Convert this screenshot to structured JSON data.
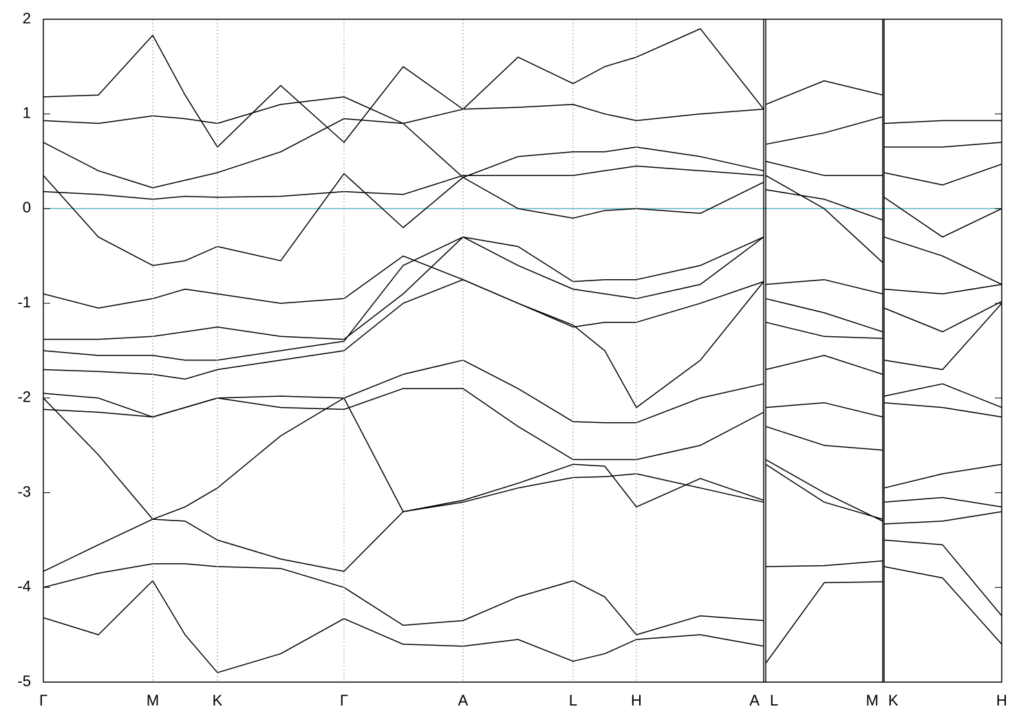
{
  "chart_data": {
    "type": "line",
    "color": "#000000",
    "x": [
      0,
      0.8,
      1.59,
      2.06,
      2.53,
      3.45,
      4.37,
      5.23,
      6.1,
      6.9,
      7.7,
      8.16,
      8.62,
      9.55,
      10.47,
      null,
      10.5,
      11.35,
      12.2,
      null,
      12.22,
      13.07,
      13.93
    ],
    "series": [
      {
        "color": "#000000",
        "values": [
          -4.32,
          -4.5,
          -3.93,
          -4.5,
          -4.9,
          -4.7,
          -4.33,
          -4.6,
          -4.62,
          -4.55,
          -4.78,
          -4.7,
          -4.55,
          -4.5,
          -4.62,
          null,
          -4.8,
          -3.95,
          -3.94,
          null,
          -3.78,
          -3.9,
          -4.6
        ]
      },
      {
        "color": "#000000",
        "values": [
          -4.0,
          -3.85,
          -3.75,
          -3.75,
          -3.78,
          -3.8,
          -4.0,
          -4.4,
          -4.35,
          -4.1,
          -3.93,
          -4.1,
          -4.5,
          -4.3,
          -4.35,
          null,
          -3.78,
          -3.77,
          -3.72,
          null,
          -3.5,
          -3.55,
          -4.3
        ]
      },
      {
        "color": "#000000",
        "values": [
          -3.83,
          -3.55,
          -3.28,
          -3.3,
          -3.5,
          -3.7,
          -3.83,
          -3.2,
          -3.1,
          -2.95,
          -2.84,
          -2.83,
          -2.8,
          -2.95,
          -3.1,
          null,
          -2.7,
          -3.1,
          -3.28,
          null,
          -3.33,
          -3.3,
          -3.2
        ]
      },
      {
        "color": "#000000",
        "values": [
          -2.0,
          -2.6,
          -3.28,
          -3.15,
          -2.95,
          -2.4,
          -2.0,
          -3.2,
          -3.08,
          -2.9,
          -2.7,
          -2.72,
          -3.15,
          -2.85,
          -3.08,
          null,
          -2.65,
          -3.0,
          -3.3,
          null,
          -3.1,
          -3.05,
          -3.15
        ]
      },
      {
        "color": "#000000",
        "values": [
          -2.12,
          -2.15,
          -2.2,
          -2.1,
          -2.0,
          -2.1,
          -2.12,
          -1.9,
          -1.9,
          -2.3,
          -2.65,
          -2.65,
          -2.65,
          -2.5,
          -2.15,
          null,
          -2.3,
          -2.5,
          -2.55,
          null,
          -2.95,
          -2.8,
          -2.7
        ]
      },
      {
        "color": "#000000",
        "values": [
          -1.95,
          -2.0,
          -2.2,
          -2.1,
          -2.0,
          -1.98,
          -2.0,
          -1.75,
          -1.6,
          -1.9,
          -2.25,
          -2.26,
          -2.26,
          -2.0,
          -1.85,
          null,
          -2.1,
          -2.05,
          -2.2,
          null,
          -2.05,
          -2.1,
          -2.2
        ]
      },
      {
        "color": "#000000",
        "values": [
          -1.7,
          -1.72,
          -1.75,
          -1.8,
          -1.7,
          -1.6,
          -1.5,
          -1.0,
          -0.75,
          -1.0,
          -1.23,
          -1.5,
          -2.1,
          -1.6,
          -0.77,
          null,
          -1.7,
          -1.55,
          -1.75,
          null,
          -1.98,
          -1.85,
          -2.1
        ]
      },
      {
        "color": "#000000",
        "values": [
          -1.5,
          -1.55,
          -1.55,
          -1.6,
          -1.6,
          -1.5,
          -1.4,
          -0.6,
          -0.3,
          -0.6,
          -0.85,
          -0.9,
          -0.95,
          -0.8,
          -0.3,
          null,
          -1.2,
          -1.35,
          -1.37,
          null,
          -1.6,
          -1.7,
          -1.0
        ]
      },
      {
        "color": "#000000",
        "values": [
          -1.38,
          -1.38,
          -1.35,
          -1.3,
          -1.25,
          -1.35,
          -1.38,
          -0.9,
          -0.3,
          -0.4,
          -0.77,
          -0.75,
          -0.75,
          -0.6,
          -0.3,
          null,
          -0.95,
          -1.1,
          -1.3,
          null,
          -1.05,
          -1.3,
          -0.98
        ]
      },
      {
        "color": "#000000",
        "values": [
          -0.9,
          -1.05,
          -0.95,
          -0.85,
          -0.9,
          -1.0,
          -0.95,
          -0.5,
          -0.75,
          -1.0,
          -1.25,
          -1.2,
          -1.2,
          -1.0,
          -0.77,
          null,
          -0.8,
          -0.75,
          -0.9,
          null,
          -0.85,
          -0.9,
          -0.8
        ]
      },
      {
        "color": "#000000",
        "values": [
          0.35,
          -0.3,
          -0.6,
          -0.55,
          -0.4,
          -0.55,
          0.37,
          -0.2,
          0.33,
          0.0,
          -0.1,
          -0.02,
          0.0,
          -0.05,
          0.28,
          null,
          0.35,
          0.0,
          -0.57,
          null,
          -0.3,
          -0.5,
          -0.8
        ]
      },
      {
        "color": "#000000",
        "values": [
          0.18,
          0.15,
          0.1,
          0.13,
          0.12,
          0.13,
          0.18,
          0.15,
          0.35,
          0.35,
          0.35,
          0.4,
          0.45,
          0.4,
          0.35,
          null,
          0.2,
          0.1,
          -0.12,
          null,
          0.12,
          -0.3,
          0.0
        ]
      },
      {
        "color": "#000000",
        "values": [
          0.7,
          0.4,
          0.22,
          0.3,
          0.38,
          0.6,
          0.95,
          0.9,
          0.33,
          0.55,
          0.6,
          0.6,
          0.65,
          0.55,
          0.4,
          null,
          0.5,
          0.35,
          0.35,
          null,
          0.38,
          0.25,
          0.47
        ]
      },
      {
        "color": "#000000",
        "values": [
          0.93,
          0.9,
          0.98,
          0.95,
          0.9,
          1.1,
          1.18,
          0.9,
          1.05,
          1.07,
          1.1,
          1.0,
          0.93,
          1.0,
          1.05,
          null,
          0.68,
          0.8,
          0.97,
          null,
          0.9,
          0.93,
          0.93
        ]
      },
      {
        "color": "#000000",
        "values": [
          1.18,
          1.2,
          1.83,
          1.2,
          0.65,
          1.3,
          0.7,
          1.5,
          1.05,
          1.6,
          1.32,
          1.5,
          1.6,
          1.9,
          1.05,
          null,
          1.1,
          1.35,
          1.2,
          null,
          0.65,
          0.65,
          0.7
        ]
      }
    ],
    "xlim": [
      0,
      13.93
    ],
    "xticks": [
      {
        "value": 0,
        "label": "Γ"
      },
      {
        "value": 1.59,
        "label": "M"
      },
      {
        "value": 2.53,
        "label": "K"
      },
      {
        "value": 4.37,
        "label": "Γ"
      },
      {
        "value": 6.1,
        "label": "A"
      },
      {
        "value": 7.7,
        "label": "L"
      },
      {
        "value": 8.62,
        "label": "H"
      },
      {
        "value": 10.47,
        "label": "A"
      },
      {
        "value": 10.5,
        "label": "L"
      },
      {
        "value": 12.2,
        "label": "M"
      },
      {
        "value": 12.22,
        "label": "K"
      },
      {
        "value": 13.93,
        "label": "H"
      }
    ],
    "ylim": [
      -5,
      2
    ],
    "yticks": [
      -5,
      -4,
      -3,
      -2,
      -1,
      0,
      1,
      2
    ],
    "hlines": [
      {
        "value": 0,
        "color": "#5ab4c8"
      }
    ],
    "grid": true
  }
}
